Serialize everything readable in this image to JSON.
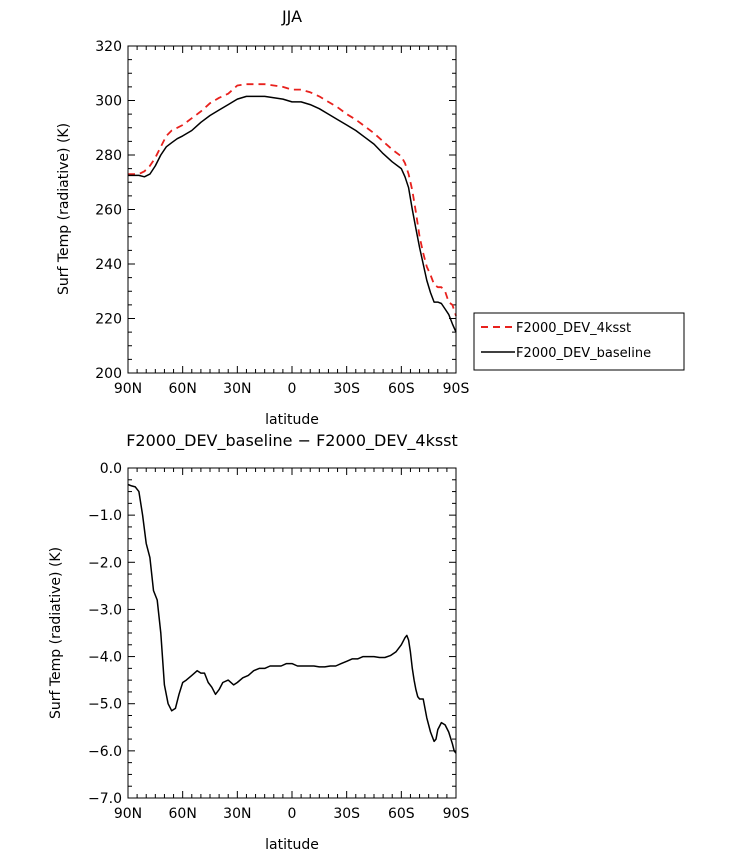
{
  "chart_data": [
    {
      "type": "line",
      "title": "JJA",
      "xlabel": "latitude",
      "ylabel": "Surf Temp (radiative) (K)",
      "xlim": [
        90,
        -90
      ],
      "ylim": [
        200,
        320
      ],
      "x_ticks": [
        90,
        60,
        30,
        0,
        -30,
        -60,
        -90
      ],
      "x_tick_labels": [
        "90N",
        "60N",
        "30N",
        "0",
        "30S",
        "60S",
        "90S"
      ],
      "y_ticks": [
        200,
        220,
        240,
        260,
        280,
        300,
        320
      ],
      "y_tick_labels": [
        "200",
        "220",
        "240",
        "260",
        "280",
        "300",
        "320"
      ],
      "legend_position": "right",
      "series": [
        {
          "name": "F2000_DEV_4ksst",
          "color": "#e8211d",
          "dash": "dashed",
          "x": [
            90,
            87,
            84,
            81,
            78,
            75,
            72,
            69,
            66,
            63,
            60,
            55,
            50,
            45,
            40,
            35,
            30,
            25,
            20,
            15,
            10,
            5,
            0,
            -5,
            -10,
            -15,
            -20,
            -25,
            -30,
            -35,
            -40,
            -45,
            -50,
            -55,
            -60,
            -62,
            -64,
            -66,
            -68,
            -70,
            -72,
            -74,
            -76,
            -78,
            -80,
            -82,
            -84,
            -86,
            -88,
            -90
          ],
          "values": [
            273,
            273,
            273,
            274,
            276,
            279,
            283,
            287,
            289,
            290,
            291,
            293.5,
            296,
            299,
            301,
            302.5,
            305.5,
            306,
            306,
            306,
            305.5,
            305,
            304,
            304,
            303,
            301.5,
            299.5,
            297.5,
            295,
            293,
            290.5,
            288,
            285,
            282,
            279.5,
            277,
            273,
            267,
            259,
            250,
            244,
            239,
            236,
            232.5,
            231.5,
            231.5,
            230,
            226,
            225,
            221
          ]
        },
        {
          "name": "F2000_DEV_baseline",
          "color": "#000000",
          "dash": "solid",
          "x": [
            90,
            87,
            84,
            81,
            78,
            75,
            72,
            69,
            66,
            63,
            60,
            55,
            50,
            45,
            40,
            35,
            30,
            25,
            20,
            15,
            10,
            5,
            0,
            -5,
            -10,
            -15,
            -20,
            -25,
            -30,
            -35,
            -40,
            -45,
            -50,
            -55,
            -60,
            -62,
            -64,
            -66,
            -68,
            -70,
            -72,
            -74,
            -76,
            -78,
            -80,
            -82,
            -84,
            -86,
            -88,
            -90
          ],
          "values": [
            272.5,
            272.5,
            272.5,
            272,
            273,
            276,
            280,
            283,
            284.5,
            286,
            287,
            289,
            292,
            294.5,
            296.5,
            298.5,
            300.5,
            301.5,
            301.5,
            301.5,
            301,
            300.5,
            299.5,
            299.5,
            298.5,
            297,
            295,
            293,
            291,
            289,
            286.5,
            284,
            280.5,
            277.5,
            275,
            272,
            268,
            260,
            253,
            246,
            240,
            234,
            229.5,
            226,
            226,
            225.5,
            223.5,
            221.5,
            218,
            215
          ]
        }
      ]
    },
    {
      "type": "line",
      "title": "F2000_DEV_baseline − F2000_DEV_4ksst",
      "xlabel": "latitude",
      "ylabel": "Surf Temp (radiative) (K)",
      "xlim": [
        90,
        -90
      ],
      "ylim": [
        -7.0,
        0.0
      ],
      "x_ticks": [
        90,
        60,
        30,
        0,
        -30,
        -60,
        -90
      ],
      "x_tick_labels": [
        "90N",
        "60N",
        "30N",
        "0",
        "30S",
        "60S",
        "90S"
      ],
      "y_ticks": [
        -7.0,
        -6.0,
        -5.0,
        -4.0,
        -3.0,
        -2.0,
        -1.0,
        0.0
      ],
      "y_tick_labels": [
        "−7.0",
        "−6.0",
        "−5.0",
        "−4.0",
        "−3.0",
        "−2.0",
        "−1.0",
        "0.0"
      ],
      "series": [
        {
          "color": "#000000",
          "dash": "solid",
          "x": [
            90,
            88,
            86,
            84,
            82,
            80,
            78,
            76,
            74,
            72,
            70,
            68,
            66,
            64,
            62,
            60,
            58,
            55,
            52,
            50,
            48,
            46,
            44,
            42,
            40,
            38,
            35,
            32,
            30,
            27,
            24,
            21,
            18,
            15,
            12,
            9,
            6,
            3,
            0,
            -3,
            -6,
            -9,
            -12,
            -15,
            -18,
            -21,
            -24,
            -27,
            -30,
            -33,
            -36,
            -39,
            -42,
            -45,
            -48,
            -51,
            -54,
            -57,
            -60,
            -62,
            -63,
            -64,
            -65,
            -66,
            -67,
            -68,
            -69,
            -70,
            -72,
            -74,
            -76,
            -78,
            -79,
            -80,
            -82,
            -84,
            -86,
            -88,
            -89,
            -90
          ],
          "values": [
            -0.35,
            -0.38,
            -0.4,
            -0.5,
            -1.0,
            -1.6,
            -1.9,
            -2.6,
            -2.8,
            -3.5,
            -4.6,
            -5.0,
            -5.15,
            -5.1,
            -4.8,
            -4.55,
            -4.5,
            -4.4,
            -4.3,
            -4.35,
            -4.35,
            -4.55,
            -4.65,
            -4.8,
            -4.7,
            -4.55,
            -4.5,
            -4.6,
            -4.55,
            -4.45,
            -4.4,
            -4.3,
            -4.25,
            -4.25,
            -4.2,
            -4.2,
            -4.2,
            -4.15,
            -4.15,
            -4.2,
            -4.2,
            -4.2,
            -4.2,
            -4.22,
            -4.22,
            -4.2,
            -4.2,
            -4.15,
            -4.1,
            -4.05,
            -4.05,
            -4.0,
            -4.0,
            -4.0,
            -4.02,
            -4.02,
            -3.98,
            -3.9,
            -3.75,
            -3.6,
            -3.55,
            -3.65,
            -3.9,
            -4.25,
            -4.5,
            -4.7,
            -4.85,
            -4.9,
            -4.9,
            -5.3,
            -5.6,
            -5.8,
            -5.75,
            -5.55,
            -5.4,
            -5.45,
            -5.6,
            -5.85,
            -6.0,
            -6.05
          ]
        }
      ]
    }
  ]
}
